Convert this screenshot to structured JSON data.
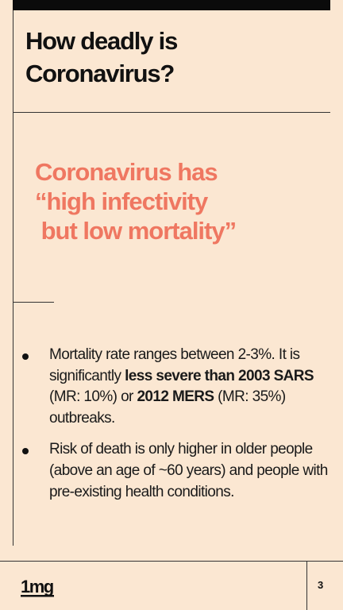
{
  "slide": {
    "title_lines": [
      "How deadly is",
      "Coronavirus?"
    ],
    "quote_lines": [
      "Coronavirus has",
      "“high infectivity",
      " but low mortality”"
    ],
    "bullets": [
      {
        "p1": "Mortality rate ranges between 2-3%. It is significantly ",
        "b1": "less severe than 2003 SARS",
        "p2": " (MR: 10%) or ",
        "b2": "2012 MERS",
        "p3": " (MR: 35%) outbreaks."
      },
      {
        "p1": "Risk of death is only higher in older people (above an age of ~60 years) and people with pre-existing health conditions."
      }
    ]
  },
  "footer": {
    "logo_text": "1mg",
    "page_number": "3"
  },
  "colors": {
    "background": "#fbe7d2",
    "accent": "#ef7761",
    "text": "#111111"
  }
}
